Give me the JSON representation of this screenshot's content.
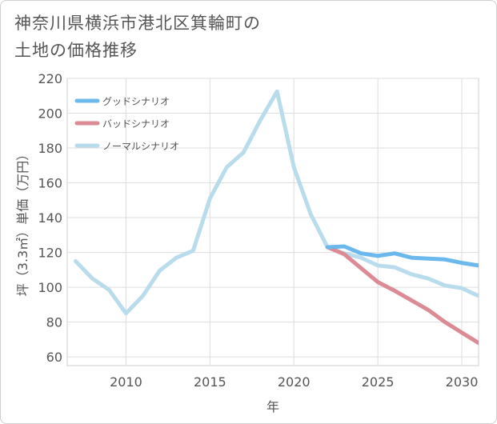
{
  "title_line1": "神奈川県横浜市港北区箕輪町の",
  "title_line2": "土地の価格推移",
  "chart_data": {
    "type": "line",
    "xlabel": "年",
    "ylabel": "坪（3.3㎡）単価（万円）",
    "xlim": [
      2006.5,
      2031
    ],
    "ylim": [
      55,
      220
    ],
    "xticks": [
      2010,
      2015,
      2020,
      2025,
      2030
    ],
    "yticks": [
      60,
      80,
      100,
      120,
      140,
      160,
      180,
      200,
      220
    ],
    "grid": true,
    "legend_position": "top-left",
    "series": [
      {
        "name": "グッドシナリオ",
        "color": "#6bb8ec",
        "points": [
          [
            2022,
            123
          ],
          [
            2023,
            123.5
          ],
          [
            2024,
            119.5
          ],
          [
            2025,
            118
          ],
          [
            2026,
            119.5
          ],
          [
            2027,
            117
          ],
          [
            2028,
            116.5
          ],
          [
            2029,
            116
          ],
          [
            2030,
            114
          ],
          [
            2031,
            112.5
          ]
        ]
      },
      {
        "name": "バッドシナリオ",
        "color": "#dc8a94",
        "points": [
          [
            2022,
            123
          ],
          [
            2023,
            119
          ],
          [
            2024,
            111
          ],
          [
            2025,
            103
          ],
          [
            2026,
            98
          ],
          [
            2027,
            92.5
          ],
          [
            2028,
            87
          ],
          [
            2029,
            80
          ],
          [
            2030,
            74
          ],
          [
            2031,
            68
          ]
        ]
      },
      {
        "name": "ノーマルシナリオ",
        "color": "#b9dced",
        "points": [
          [
            2007,
            115
          ],
          [
            2008,
            105
          ],
          [
            2009,
            98.5
          ],
          [
            2010,
            85
          ],
          [
            2011,
            95
          ],
          [
            2012,
            109.5
          ],
          [
            2013,
            117
          ],
          [
            2014,
            121
          ],
          [
            2015,
            151
          ],
          [
            2016,
            169
          ],
          [
            2017,
            177.5
          ],
          [
            2018,
            196
          ],
          [
            2019,
            212.5
          ],
          [
            2020,
            169
          ],
          [
            2021,
            142
          ],
          [
            2022,
            123
          ],
          [
            2023,
            119.5
          ],
          [
            2024,
            117
          ],
          [
            2025,
            112.5
          ],
          [
            2026,
            111.5
          ],
          [
            2027,
            107.5
          ],
          [
            2028,
            105
          ],
          [
            2029,
            101
          ],
          [
            2030,
            99.5
          ],
          [
            2031,
            95
          ]
        ]
      }
    ]
  }
}
